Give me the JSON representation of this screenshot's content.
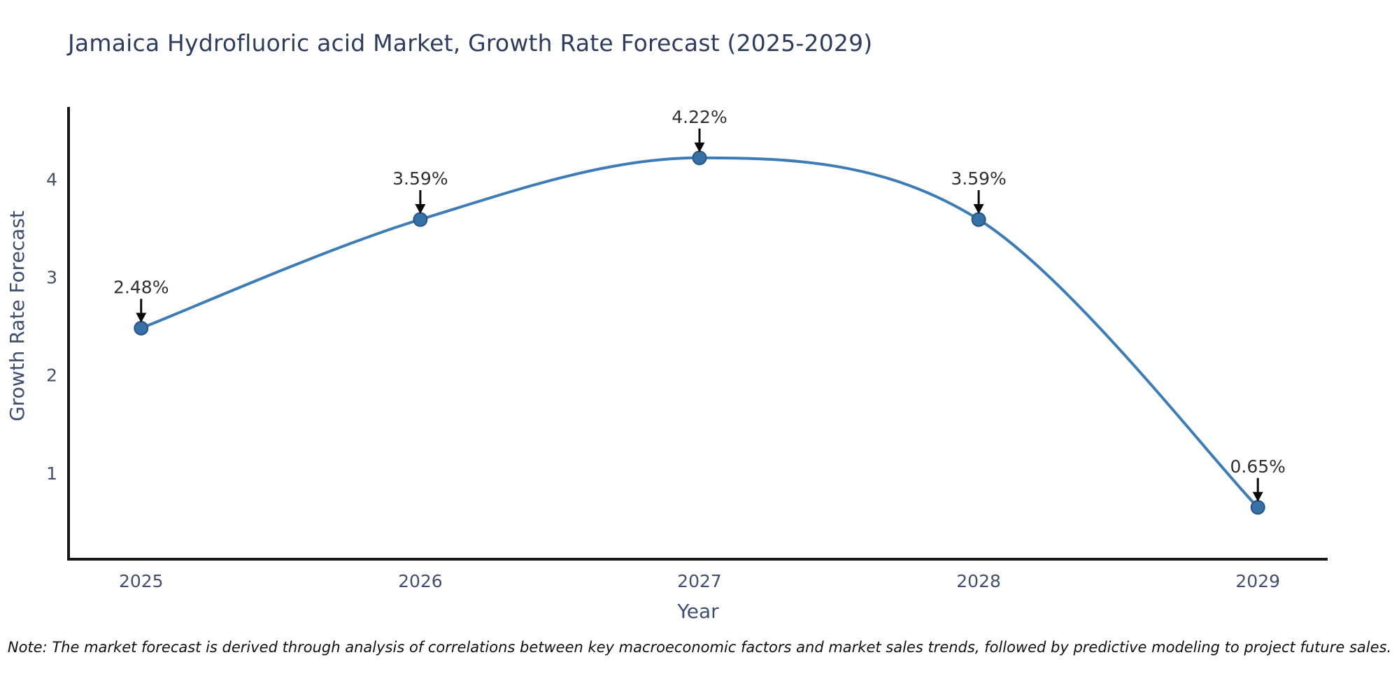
{
  "chart_data": {
    "type": "line",
    "title": "Jamaica Hydrofluoric acid Market, Growth Rate Forecast (2025-2029)",
    "xlabel": "Year",
    "ylabel": "Growth Rate Forecast",
    "x": [
      2025,
      2026,
      2027,
      2028,
      2029
    ],
    "y": [
      2.48,
      3.59,
      4.22,
      3.59,
      0.65
    ],
    "point_labels": [
      "2.48%",
      "3.59%",
      "4.22%",
      "3.59%",
      "0.65%"
    ],
    "x_tick_labels": [
      "2025",
      "2026",
      "2027",
      "2028",
      "2029"
    ],
    "x_tick_values": [
      2025,
      2026,
      2027,
      2028,
      2029
    ],
    "y_tick_labels": [
      "1",
      "2",
      "3",
      "4"
    ],
    "y_tick_values": [
      1,
      2,
      3,
      4
    ],
    "xlim": [
      2024.74,
      2029.25
    ],
    "ylim": [
      0.12,
      4.74
    ],
    "line_shape": "spline",
    "grid": false,
    "legend": "none",
    "annotations_have_arrows": true,
    "note": "Note: The market forecast is derived through analysis of correlations between key macroeconomic factors and market sales trends, followed by predictive modeling to project future sales.",
    "colors": {
      "line": "#3d7cb5",
      "marker_fill": "#3570a6",
      "marker_edge": "#2a5580",
      "axis_line": "#161616",
      "tick_label": "#44506b",
      "axis_title": "#3d4e6e",
      "title_text": "#2e3c5d",
      "annotation_text": "#303030",
      "arrow": "#0a0a0a",
      "note_text": "#101010",
      "background": "#ffffff"
    }
  }
}
